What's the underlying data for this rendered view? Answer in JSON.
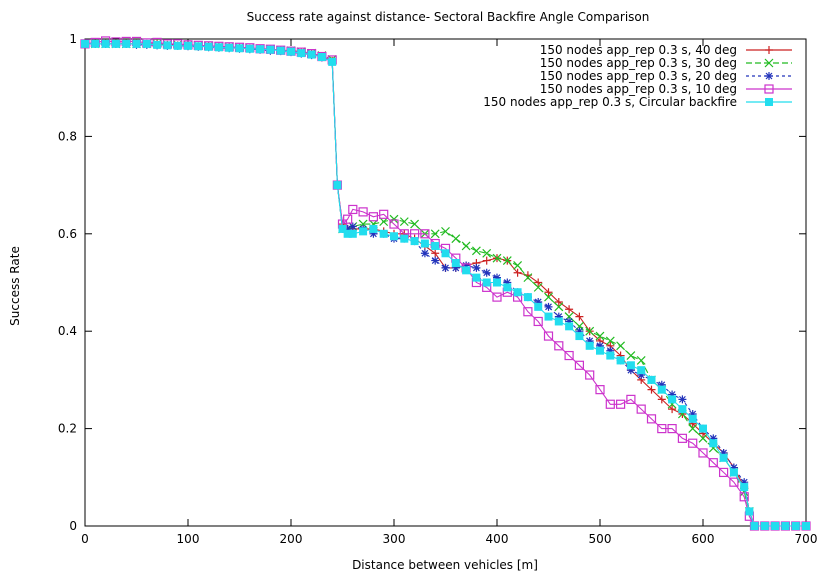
{
  "chart_data": {
    "type": "line",
    "title": "Success rate against distance- Sectoral Backfire Angle Comparison",
    "xlabel": "Distance between vehicles [m]",
    "ylabel": "Success Rate",
    "xlim": [
      0,
      700
    ],
    "ylim": [
      0,
      1
    ],
    "xticks": [
      "0",
      "100",
      "200",
      "300",
      "400",
      "500",
      "600",
      "700"
    ],
    "yticks": [
      "0",
      "0.2",
      "0.4",
      "0.6",
      "0.8",
      "1"
    ],
    "grid": false,
    "legend_position": "top-right",
    "series": [
      {
        "name": "150 nodes app_rep 0.3 s, 40 deg",
        "color": "#cc2222",
        "marker": "plus",
        "x": [
          0,
          10,
          20,
          30,
          40,
          50,
          60,
          70,
          80,
          90,
          100,
          110,
          120,
          130,
          140,
          150,
          160,
          170,
          180,
          190,
          200,
          210,
          220,
          230,
          240,
          245,
          250,
          255,
          260,
          270,
          280,
          290,
          300,
          310,
          320,
          330,
          340,
          350,
          360,
          370,
          380,
          390,
          400,
          410,
          420,
          430,
          440,
          450,
          460,
          470,
          480,
          490,
          500,
          510,
          520,
          530,
          540,
          550,
          560,
          570,
          580,
          590,
          600,
          610,
          620,
          630,
          640,
          645,
          650,
          660,
          670,
          680,
          690,
          700
        ],
        "y": [
          0.99,
          0.99,
          0.99,
          0.99,
          0.99,
          0.99,
          0.99,
          0.99,
          0.988,
          0.987,
          0.986,
          0.985,
          0.985,
          0.984,
          0.983,
          0.982,
          0.98,
          0.98,
          0.978,
          0.977,
          0.975,
          0.972,
          0.97,
          0.965,
          0.955,
          0.7,
          0.62,
          0.61,
          0.61,
          0.61,
          0.61,
          0.605,
          0.6,
          0.6,
          0.59,
          0.575,
          0.56,
          0.53,
          0.53,
          0.535,
          0.54,
          0.545,
          0.55,
          0.545,
          0.52,
          0.515,
          0.5,
          0.48,
          0.46,
          0.445,
          0.43,
          0.4,
          0.38,
          0.37,
          0.35,
          0.32,
          0.3,
          0.28,
          0.26,
          0.24,
          0.23,
          0.21,
          0.19,
          0.17,
          0.15,
          0.12,
          0.08,
          0.03,
          0,
          0,
          0,
          0,
          0,
          0
        ]
      },
      {
        "name": "150 nodes app_rep 0.3 s, 30 deg",
        "color": "#22bb22",
        "marker": "x",
        "x": [
          0,
          10,
          20,
          30,
          40,
          50,
          60,
          70,
          80,
          90,
          100,
          110,
          120,
          130,
          140,
          150,
          160,
          170,
          180,
          190,
          200,
          210,
          220,
          230,
          240,
          245,
          250,
          255,
          260,
          270,
          280,
          290,
          300,
          310,
          320,
          330,
          340,
          350,
          360,
          370,
          380,
          390,
          400,
          410,
          420,
          430,
          440,
          450,
          460,
          470,
          480,
          490,
          500,
          510,
          520,
          530,
          540,
          550,
          560,
          570,
          580,
          590,
          600,
          610,
          620,
          630,
          640,
          645,
          650,
          660,
          670,
          680,
          690,
          700
        ],
        "y": [
          0.99,
          0.99,
          0.99,
          0.99,
          0.99,
          0.99,
          0.99,
          0.99,
          0.988,
          0.988,
          0.987,
          0.986,
          0.985,
          0.984,
          0.983,
          0.982,
          0.981,
          0.98,
          0.979,
          0.977,
          0.976,
          0.974,
          0.971,
          0.966,
          0.958,
          0.7,
          0.61,
          0.61,
          0.615,
          0.62,
          0.62,
          0.625,
          0.63,
          0.625,
          0.62,
          0.6,
          0.6,
          0.605,
          0.59,
          0.575,
          0.565,
          0.56,
          0.55,
          0.545,
          0.535,
          0.51,
          0.49,
          0.47,
          0.45,
          0.43,
          0.41,
          0.4,
          0.39,
          0.38,
          0.37,
          0.35,
          0.34,
          0.3,
          0.28,
          0.25,
          0.23,
          0.2,
          0.18,
          0.16,
          0.14,
          0.11,
          0.07,
          0.03,
          0,
          0,
          0,
          0,
          0,
          0
        ]
      },
      {
        "name": "150 nodes app_rep 0.3 s, 20 deg",
        "color": "#2233bb",
        "marker": "star",
        "x": [
          0,
          10,
          20,
          30,
          40,
          50,
          60,
          70,
          80,
          90,
          100,
          110,
          120,
          130,
          140,
          150,
          160,
          170,
          180,
          190,
          200,
          210,
          220,
          230,
          240,
          245,
          250,
          255,
          260,
          270,
          280,
          290,
          300,
          310,
          320,
          330,
          340,
          350,
          360,
          370,
          380,
          390,
          400,
          410,
          420,
          430,
          440,
          450,
          460,
          470,
          480,
          490,
          500,
          510,
          520,
          530,
          540,
          550,
          560,
          570,
          580,
          590,
          600,
          610,
          620,
          630,
          640,
          645,
          650,
          660,
          670,
          680,
          690,
          700
        ],
        "y": [
          0.99,
          0.99,
          0.99,
          0.99,
          0.99,
          0.988,
          0.988,
          0.987,
          0.986,
          0.986,
          0.985,
          0.984,
          0.983,
          0.982,
          0.981,
          0.98,
          0.979,
          0.978,
          0.976,
          0.975,
          0.973,
          0.97,
          0.967,
          0.962,
          0.952,
          0.7,
          0.61,
          0.61,
          0.615,
          0.61,
          0.6,
          0.6,
          0.59,
          0.59,
          0.585,
          0.56,
          0.545,
          0.53,
          0.53,
          0.535,
          0.53,
          0.52,
          0.51,
          0.5,
          0.48,
          0.47,
          0.46,
          0.45,
          0.43,
          0.42,
          0.4,
          0.38,
          0.37,
          0.36,
          0.34,
          0.32,
          0.31,
          0.3,
          0.29,
          0.27,
          0.26,
          0.23,
          0.2,
          0.18,
          0.15,
          0.12,
          0.09,
          0.03,
          0,
          0,
          0,
          0,
          0,
          0
        ]
      },
      {
        "name": "150 nodes app_rep 0.3 s, 10 deg",
        "color": "#cc33cc",
        "marker": "square",
        "x": [
          0,
          10,
          20,
          30,
          40,
          50,
          60,
          70,
          80,
          90,
          100,
          110,
          120,
          130,
          140,
          150,
          160,
          170,
          180,
          190,
          200,
          210,
          220,
          230,
          240,
          245,
          250,
          255,
          260,
          270,
          280,
          290,
          300,
          310,
          320,
          330,
          340,
          350,
          360,
          370,
          380,
          390,
          400,
          410,
          420,
          430,
          440,
          450,
          460,
          470,
          480,
          490,
          500,
          510,
          520,
          530,
          540,
          550,
          560,
          570,
          580,
          590,
          600,
          610,
          620,
          630,
          640,
          645,
          650,
          660,
          670,
          680,
          690,
          700
        ],
        "y": [
          0.99,
          0.993,
          0.996,
          0.994,
          0.995,
          0.995,
          0.992,
          0.993,
          0.99,
          0.99,
          0.988,
          0.987,
          0.986,
          0.985,
          0.984,
          0.983,
          0.982,
          0.98,
          0.979,
          0.977,
          0.975,
          0.973,
          0.97,
          0.964,
          0.957,
          0.7,
          0.62,
          0.63,
          0.65,
          0.645,
          0.635,
          0.64,
          0.62,
          0.6,
          0.6,
          0.6,
          0.58,
          0.57,
          0.55,
          0.53,
          0.5,
          0.49,
          0.47,
          0.48,
          0.47,
          0.44,
          0.42,
          0.39,
          0.37,
          0.35,
          0.33,
          0.31,
          0.28,
          0.25,
          0.25,
          0.26,
          0.24,
          0.22,
          0.2,
          0.2,
          0.18,
          0.17,
          0.15,
          0.13,
          0.11,
          0.09,
          0.06,
          0.02,
          0,
          0,
          0,
          0,
          0,
          0
        ]
      },
      {
        "name": "150 nodes app_rep 0.3 s, Circular backfire",
        "color": "#22ddee",
        "marker": "filled-square",
        "x": [
          0,
          10,
          20,
          30,
          40,
          50,
          60,
          70,
          80,
          90,
          100,
          110,
          120,
          130,
          140,
          150,
          160,
          170,
          180,
          190,
          200,
          210,
          220,
          230,
          240,
          245,
          250,
          255,
          260,
          270,
          280,
          290,
          300,
          310,
          320,
          330,
          340,
          350,
          360,
          370,
          380,
          390,
          400,
          410,
          420,
          430,
          440,
          450,
          460,
          470,
          480,
          490,
          500,
          510,
          520,
          530,
          540,
          550,
          560,
          570,
          580,
          590,
          600,
          610,
          620,
          630,
          640,
          645,
          650,
          660,
          670,
          680,
          690,
          700
        ],
        "y": [
          0.99,
          0.99,
          0.99,
          0.99,
          0.99,
          0.99,
          0.99,
          0.988,
          0.987,
          0.986,
          0.986,
          0.985,
          0.984,
          0.983,
          0.982,
          0.981,
          0.98,
          0.979,
          0.978,
          0.976,
          0.974,
          0.971,
          0.968,
          0.963,
          0.953,
          0.7,
          0.61,
          0.6,
          0.6,
          0.605,
          0.61,
          0.6,
          0.595,
          0.59,
          0.585,
          0.58,
          0.575,
          0.56,
          0.54,
          0.525,
          0.51,
          0.5,
          0.5,
          0.49,
          0.48,
          0.47,
          0.45,
          0.43,
          0.42,
          0.41,
          0.39,
          0.37,
          0.36,
          0.35,
          0.34,
          0.33,
          0.32,
          0.3,
          0.28,
          0.26,
          0.24,
          0.22,
          0.2,
          0.17,
          0.14,
          0.11,
          0.08,
          0.03,
          0,
          0,
          0,
          0,
          0,
          0
        ]
      }
    ]
  }
}
